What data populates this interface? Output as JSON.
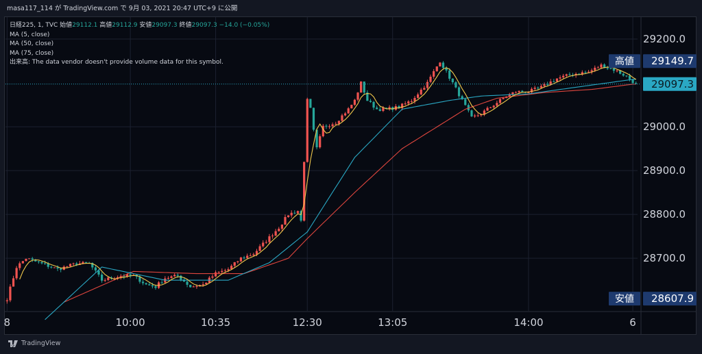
{
  "header": {
    "text": "masa117_114 が TradingView.com で 9月 03, 2021 20:47 UTC+9 に公開"
  },
  "legend": {
    "symbol": "日経225, 1, TVC",
    "open_label": "始値",
    "open": "29112.1",
    "high_label": "高値",
    "high": "29112.9",
    "low_label": "安値",
    "low": "29097.3",
    "close_label": "終値",
    "close": "29097.3",
    "change": "−14.0 (−0.05%)",
    "ma5": "MA (5, close)",
    "ma50": "MA (50, close)",
    "ma75": "MA (75, close)",
    "volume_note": "出来高: The data vendor doesn't provide volume data for this symbol."
  },
  "footer": {
    "brand": "TradingView"
  },
  "colors": {
    "up": "#ef5350",
    "down": "#26a69a",
    "ma5": "#f2c94c",
    "ma50": "#2aa8c4",
    "ma75": "#e0463e",
    "grid": "#1c2130",
    "background": "#070a12"
  },
  "chart_data": {
    "type": "candlestick",
    "title": "日経225, 1, TVC",
    "xlabel": "",
    "ylabel": "",
    "ylim": [
      28580,
      29250
    ],
    "y_ticks": [
      "29200.0",
      "29000.0",
      "28900.0",
      "28800.0",
      "28700.0"
    ],
    "y_tick_values": [
      29200,
      29000,
      28900,
      28800,
      28700
    ],
    "x_ticks": [
      "8",
      "10:00",
      "10:35",
      "12:30",
      "13:05",
      "14:00",
      "6"
    ],
    "x_tick_positions": [
      0,
      39,
      66,
      95,
      122,
      165,
      198
    ],
    "bar_count": 200,
    "price_labels": [
      {
        "label": "高値",
        "value": "29149.7",
        "price": 29149.7
      },
      {
        "label": "",
        "value": "29097.3",
        "price": 29097.3
      },
      {
        "label": "安値",
        "value": "28607.9",
        "price": 28607.9
      }
    ],
    "keypoints": [
      [
        0,
        28608
      ],
      [
        3,
        28680
      ],
      [
        6,
        28700
      ],
      [
        10,
        28690
      ],
      [
        16,
        28675
      ],
      [
        22,
        28688
      ],
      [
        26,
        28688
      ],
      [
        30,
        28650
      ],
      [
        36,
        28660
      ],
      [
        40,
        28660
      ],
      [
        44,
        28640
      ],
      [
        47,
        28635
      ],
      [
        50,
        28655
      ],
      [
        54,
        28660
      ],
      [
        58,
        28635
      ],
      [
        62,
        28640
      ],
      [
        66,
        28665
      ],
      [
        70,
        28675
      ],
      [
        74,
        28700
      ],
      [
        78,
        28710
      ],
      [
        82,
        28740
      ],
      [
        86,
        28770
      ],
      [
        89,
        28800
      ],
      [
        92,
        28808
      ],
      [
        93,
        28785
      ],
      [
        95,
        29060
      ],
      [
        96,
        29040
      ],
      [
        97,
        28990
      ],
      [
        98,
        28950
      ],
      [
        100,
        29000
      ],
      [
        104,
        29010
      ],
      [
        108,
        29040
      ],
      [
        110,
        29060
      ],
      [
        112,
        29100
      ],
      [
        114,
        29060
      ],
      [
        117,
        29040
      ],
      [
        120,
        29040
      ],
      [
        124,
        29045
      ],
      [
        128,
        29060
      ],
      [
        133,
        29100
      ],
      [
        137,
        29150
      ],
      [
        141,
        29100
      ],
      [
        144,
        29060
      ],
      [
        147,
        29020
      ],
      [
        150,
        29030
      ],
      [
        154,
        29050
      ],
      [
        158,
        29070
      ],
      [
        161,
        29080
      ],
      [
        165,
        29080
      ],
      [
        169,
        29090
      ],
      [
        174,
        29110
      ],
      [
        179,
        29120
      ],
      [
        184,
        29125
      ],
      [
        188,
        29140
      ],
      [
        192,
        29130
      ],
      [
        196,
        29115
      ],
      [
        199,
        29097
      ]
    ],
    "ma50_keypoints": [
      [
        12,
        28560
      ],
      [
        30,
        28680
      ],
      [
        50,
        28650
      ],
      [
        70,
        28650
      ],
      [
        83,
        28690
      ],
      [
        95,
        28760
      ],
      [
        110,
        28930
      ],
      [
        125,
        29040
      ],
      [
        140,
        29060
      ],
      [
        150,
        29070
      ],
      [
        165,
        29075
      ],
      [
        180,
        29090
      ],
      [
        198,
        29108
      ]
    ],
    "ma75_keypoints": [
      [
        18,
        28600
      ],
      [
        40,
        28670
      ],
      [
        60,
        28665
      ],
      [
        75,
        28665
      ],
      [
        89,
        28700
      ],
      [
        95,
        28745
      ],
      [
        110,
        28850
      ],
      [
        125,
        28950
      ],
      [
        145,
        29040
      ],
      [
        155,
        29065
      ],
      [
        170,
        29078
      ],
      [
        185,
        29085
      ],
      [
        198,
        29097
      ]
    ]
  }
}
